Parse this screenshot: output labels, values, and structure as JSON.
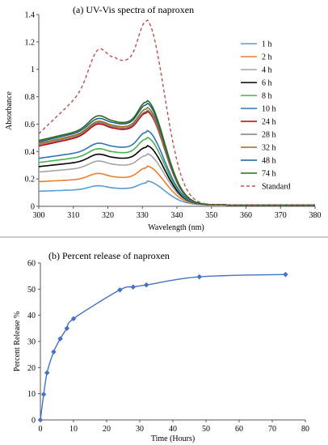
{
  "chart_data": [
    {
      "type": "line",
      "title": "(a) UV-Vis spectra of naproxen",
      "xlabel": "Wavelength (nm)",
      "ylabel": "Absorbance",
      "xlim": [
        300,
        380
      ],
      "ylim": [
        0,
        1.4
      ],
      "xticks": [
        300,
        310,
        320,
        330,
        340,
        350,
        360,
        370,
        380
      ],
      "yticks": [
        0,
        0.2,
        0.4,
        0.6,
        0.8,
        1,
        1.2,
        1.4
      ],
      "legend_position": "right",
      "series": [
        {
          "name": "1 h",
          "color": "#5b9bd5",
          "style": "solid",
          "peak1": 0.15,
          "valley": 0.13,
          "peak2": 0.17,
          "base300": 0.11
        },
        {
          "name": "2 h",
          "color": "#ed7d31",
          "style": "solid",
          "peak1": 0.24,
          "valley": 0.21,
          "peak2": 0.28,
          "base300": 0.18
        },
        {
          "name": "4 h",
          "color": "#a5a5a5",
          "style": "solid",
          "peak1": 0.33,
          "valley": 0.3,
          "peak2": 0.37,
          "base300": 0.25
        },
        {
          "name": "6 h",
          "color": "#000000",
          "style": "solid",
          "peak1": 0.38,
          "valley": 0.35,
          "peak2": 0.43,
          "base300": 0.29
        },
        {
          "name": "8 h",
          "color": "#4caf50",
          "style": "solid",
          "peak1": 0.42,
          "valley": 0.39,
          "peak2": 0.49,
          "base300": 0.32
        },
        {
          "name": "10 h",
          "color": "#2e75b6",
          "style": "solid",
          "peak1": 0.46,
          "valley": 0.43,
          "peak2": 0.54,
          "base300": 0.35
        },
        {
          "name": "24 h",
          "color": "#c00000",
          "style": "solid",
          "peak1": 0.6,
          "valley": 0.56,
          "peak2": 0.68,
          "base300": 0.44
        },
        {
          "name": "28 h",
          "color": "#7f7f7f",
          "style": "solid",
          "peak1": 0.61,
          "valley": 0.57,
          "peak2": 0.69,
          "base300": 0.45
        },
        {
          "name": "32 h",
          "color": "#9e6a1e",
          "style": "solid",
          "peak1": 0.62,
          "valley": 0.58,
          "peak2": 0.71,
          "base300": 0.46
        },
        {
          "name": "48 h",
          "color": "#1f5f8b",
          "style": "solid",
          "peak1": 0.64,
          "valley": 0.6,
          "peak2": 0.74,
          "base300": 0.47
        },
        {
          "name": "74 h",
          "color": "#2d6a1f",
          "style": "solid",
          "peak1": 0.66,
          "valley": 0.61,
          "peak2": 0.76,
          "base300": 0.48
        },
        {
          "name": "Standard",
          "color": "#c0504d",
          "style": "dashed",
          "peak1": 1.14,
          "valley": 1.06,
          "peak2": 1.35,
          "base300": 0.53
        }
      ]
    },
    {
      "type": "line",
      "title": "(b) Percent release of naproxen",
      "xlabel": "Time (Hours)",
      "ylabel": "Percent Release %",
      "xlim": [
        0,
        80
      ],
      "ylim": [
        0,
        60
      ],
      "xticks": [
        0,
        10,
        20,
        30,
        40,
        50,
        60,
        70,
        80
      ],
      "yticks": [
        0,
        10,
        20,
        30,
        40,
        50,
        60
      ],
      "color": "#4472c4",
      "x": [
        0,
        1,
        2,
        4,
        6,
        8,
        10,
        24,
        28,
        32,
        48,
        74
      ],
      "y": [
        0,
        9.8,
        18,
        26,
        31,
        35,
        38.7,
        49.7,
        50.8,
        51.6,
        54.7,
        55.6
      ]
    }
  ]
}
